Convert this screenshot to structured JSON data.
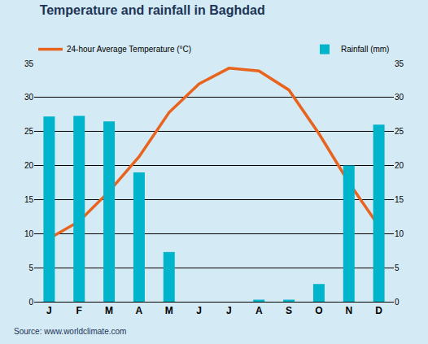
{
  "chart_data": {
    "type": "bar",
    "title": "Temperature and rainfall in Baghdad",
    "source": "Source: www.worldclimate.com",
    "categories": [
      "J",
      "F",
      "M",
      "A",
      "M",
      "J",
      "J",
      "A",
      "S",
      "O",
      "N",
      "D"
    ],
    "series": [
      {
        "name": "Rainfall (mm)",
        "type": "bar",
        "color": "#00b4cc",
        "axis": "y2",
        "values": [
          27.2,
          27.3,
          26.5,
          19,
          7.3,
          0,
          0,
          0.3,
          0.3,
          2.6,
          20,
          26
        ]
      },
      {
        "name": "24-hour Average Temperature (°C)",
        "type": "line",
        "color": "#e8641e",
        "line_style": "solid",
        "values": [
          9.3,
          11.8,
          16.2,
          21.3,
          27.8,
          32,
          34.3,
          33.9,
          31.1,
          24.7,
          17.5,
          11.1
        ]
      }
    ],
    "ylim": [
      0,
      35
    ],
    "yticks": [
      0,
      5,
      10,
      15,
      20,
      25,
      30,
      35
    ],
    "y2lim": [
      0,
      35
    ],
    "y2ticks": [
      0,
      5,
      10,
      15,
      20,
      25,
      30,
      35
    ],
    "grid": true
  }
}
